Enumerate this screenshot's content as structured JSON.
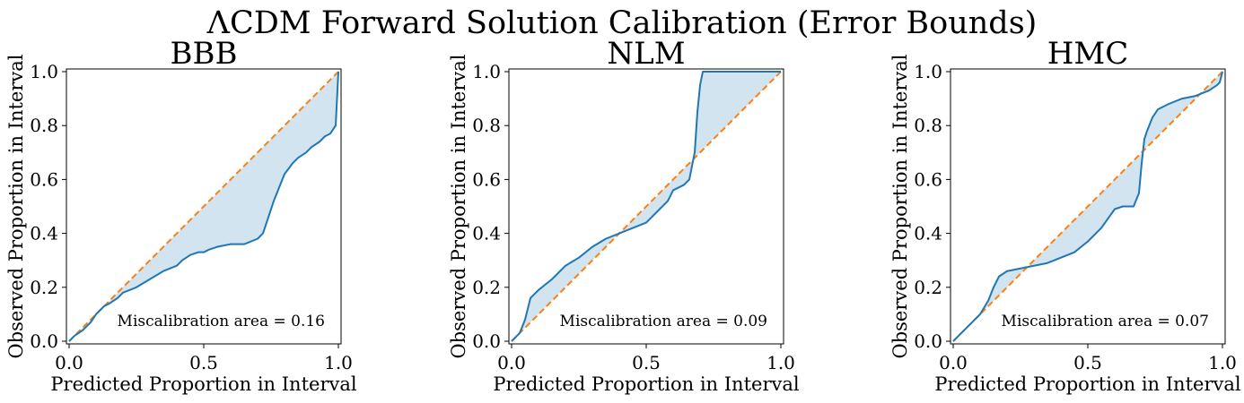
{
  "figure": {
    "suptitle": "ΛCDM Forward Solution Calibration (Error Bounds)"
  },
  "chart_data": [
    {
      "type": "line",
      "title": "BBB",
      "xlabel": "Predicted Proportion in Interval",
      "ylabel": "Observed Proportion in Interval",
      "xlim": [
        0,
        1
      ],
      "ylim": [
        0,
        1
      ],
      "x_ticks": [
        "0.0",
        "0.5",
        "1.0"
      ],
      "y_ticks": [
        "0.0",
        "0.2",
        "0.4",
        "0.6",
        "0.8",
        "1.0"
      ],
      "annotation": "Miscalibration area = 0.16",
      "reference_line": {
        "x": [
          0,
          1
        ],
        "y": [
          0,
          1
        ],
        "style": "dashed",
        "color": "#ff7f0e"
      },
      "series": [
        {
          "color": "#1f77b4",
          "x": [
            0,
            0.02,
            0.05,
            0.08,
            0.1,
            0.13,
            0.15,
            0.18,
            0.2,
            0.25,
            0.3,
            0.35,
            0.4,
            0.42,
            0.45,
            0.48,
            0.5,
            0.52,
            0.55,
            0.6,
            0.65,
            0.7,
            0.72,
            0.74,
            0.76,
            0.78,
            0.8,
            0.83,
            0.85,
            0.88,
            0.9,
            0.93,
            0.95,
            0.97,
            0.99,
            1.0
          ],
          "y": [
            0,
            0.02,
            0.04,
            0.07,
            0.1,
            0.13,
            0.14,
            0.16,
            0.18,
            0.2,
            0.23,
            0.26,
            0.28,
            0.3,
            0.32,
            0.33,
            0.33,
            0.34,
            0.35,
            0.36,
            0.36,
            0.38,
            0.4,
            0.46,
            0.52,
            0.57,
            0.62,
            0.66,
            0.68,
            0.7,
            0.72,
            0.74,
            0.76,
            0.77,
            0.8,
            1.0
          ]
        }
      ]
    },
    {
      "type": "line",
      "title": "NLM",
      "xlabel": "Predicted Proportion in Interval",
      "ylabel": "Observed Proportion in Interval",
      "xlim": [
        0,
        1
      ],
      "ylim": [
        0,
        1
      ],
      "x_ticks": [
        "0.0",
        "0.5",
        "1.0"
      ],
      "y_ticks": [
        "0.0",
        "0.2",
        "0.4",
        "0.6",
        "0.8",
        "1.0"
      ],
      "annotation": "Miscalibration area = 0.09",
      "reference_line": {
        "x": [
          0,
          1
        ],
        "y": [
          0,
          1
        ],
        "style": "dashed",
        "color": "#ff7f0e"
      },
      "series": [
        {
          "color": "#1f77b4",
          "x": [
            0,
            0.03,
            0.05,
            0.07,
            0.1,
            0.15,
            0.2,
            0.25,
            0.3,
            0.35,
            0.4,
            0.45,
            0.5,
            0.55,
            0.58,
            0.6,
            0.62,
            0.64,
            0.66,
            0.68,
            0.69,
            0.7,
            0.71,
            0.72,
            1.0
          ],
          "y": [
            0,
            0.03,
            0.08,
            0.16,
            0.19,
            0.23,
            0.28,
            0.31,
            0.35,
            0.38,
            0.4,
            0.42,
            0.44,
            0.49,
            0.52,
            0.56,
            0.57,
            0.58,
            0.6,
            0.7,
            0.85,
            0.95,
            1.0,
            1.0,
            1.0
          ]
        }
      ]
    },
    {
      "type": "line",
      "title": "HMC",
      "xlabel": "Predicted Proportion in Interval",
      "ylabel": "Observed Proportion in Interval",
      "xlim": [
        0,
        1
      ],
      "ylim": [
        0,
        1
      ],
      "x_ticks": [
        "0.0",
        "0.5",
        "1.0"
      ],
      "y_ticks": [
        "0.0",
        "0.2",
        "0.4",
        "0.6",
        "0.8",
        "1.0"
      ],
      "annotation": "Miscalibration area = 0.07",
      "reference_line": {
        "x": [
          0,
          1
        ],
        "y": [
          0,
          1
        ],
        "style": "dashed",
        "color": "#ff7f0e"
      },
      "series": [
        {
          "color": "#1f77b4",
          "x": [
            0,
            0.03,
            0.06,
            0.1,
            0.13,
            0.15,
            0.17,
            0.2,
            0.25,
            0.3,
            0.35,
            0.4,
            0.45,
            0.5,
            0.55,
            0.6,
            0.63,
            0.65,
            0.67,
            0.69,
            0.7,
            0.71,
            0.72,
            0.74,
            0.76,
            0.8,
            0.85,
            0.9,
            0.95,
            0.98,
            0.99,
            1.0
          ],
          "y": [
            0,
            0.03,
            0.06,
            0.1,
            0.15,
            0.2,
            0.24,
            0.26,
            0.27,
            0.28,
            0.29,
            0.31,
            0.33,
            0.37,
            0.42,
            0.49,
            0.5,
            0.5,
            0.5,
            0.55,
            0.66,
            0.75,
            0.78,
            0.83,
            0.86,
            0.88,
            0.9,
            0.91,
            0.93,
            0.95,
            0.96,
            1.0
          ]
        }
      ]
    }
  ]
}
